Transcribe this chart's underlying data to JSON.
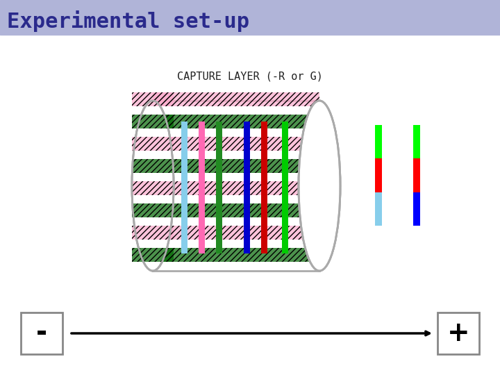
{
  "title": "Experimental set-up",
  "subtitle": "CAPTURE LAYER (-R or G)",
  "bg_color": "#ffffff",
  "title_color": "#2a2a8c",
  "title_fontsize": 22,
  "subtitle_fontsize": 11,
  "header_bar_color": "#b0b4d8",
  "cylinder_color": "#aaaaaa",
  "stripe_green_color": "#006400",
  "stripe_pink_color": "#ffaacc",
  "vertical_colors": [
    "#87ceeb",
    "#ff1493",
    "#008000",
    "#0000ff",
    "#ff0000",
    "#00cc00"
  ],
  "legend_bar1_colors": [
    "#87ceeb",
    "#ff0000",
    "#00ff00"
  ],
  "legend_bar2_colors": [
    "#0000ff",
    "#ff0000",
    "#00ff00"
  ],
  "minus_box_color": "#888888",
  "plus_box_color": "#888888",
  "arrow_color": "#000000"
}
